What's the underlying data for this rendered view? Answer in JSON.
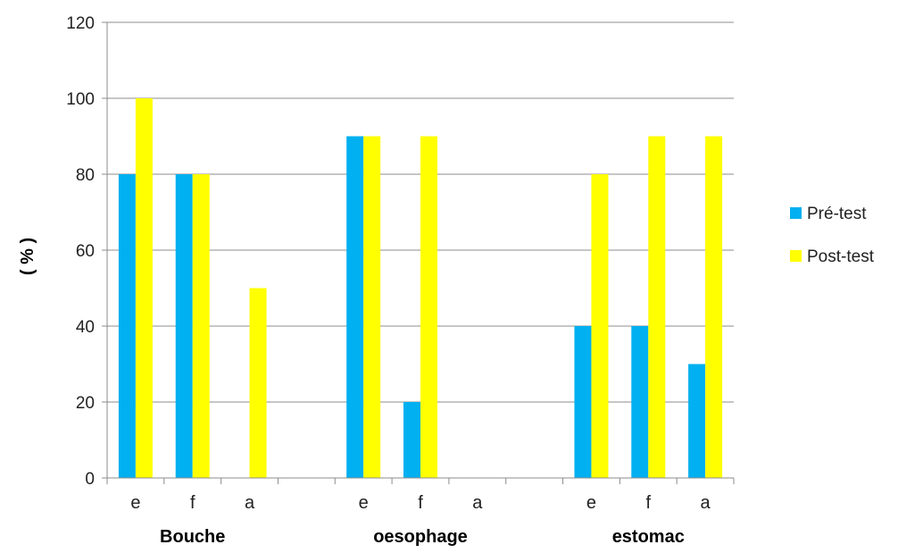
{
  "chart_data": {
    "type": "bar",
    "ylabel": "( % )",
    "xlabel": "",
    "ylim": [
      0,
      120
    ],
    "yticks": [
      0,
      20,
      40,
      60,
      80,
      100,
      120
    ],
    "grid": true,
    "legend_position": "right",
    "groups": [
      {
        "name": "Bouche",
        "categories": [
          "e",
          "f",
          "a"
        ]
      },
      {
        "name": "oesophage",
        "categories": [
          "e",
          "f",
          "a"
        ]
      },
      {
        "name": "estomac",
        "categories": [
          "e",
          "f",
          "a"
        ]
      }
    ],
    "series": [
      {
        "name": "Pré-test",
        "color": "#00B0F0",
        "values": [
          80,
          80,
          0,
          90,
          20,
          0,
          40,
          40,
          30
        ]
      },
      {
        "name": "Post-test",
        "color": "#FFFF00",
        "values": [
          100,
          80,
          50,
          90,
          90,
          0,
          80,
          90,
          90
        ]
      }
    ]
  }
}
